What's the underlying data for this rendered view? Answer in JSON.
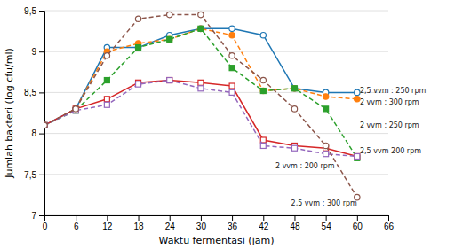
{
  "chart_data": {
    "type": "line",
    "xlabel": "Waktu fermentasi (jam)",
    "ylabel": "Jumlah bakteri (log cfu/ml)",
    "x": [
      0,
      6,
      12,
      18,
      24,
      30,
      36,
      42,
      48,
      54,
      60
    ],
    "xlim": [
      0,
      66
    ],
    "ylim": [
      7,
      9.5
    ],
    "xticks": [
      0,
      6,
      12,
      18,
      24,
      30,
      36,
      42,
      48,
      54,
      60,
      66
    ],
    "yticks": [
      7,
      {
        "value": 7.5,
        "label": "7,5"
      },
      8,
      {
        "value": 8.5,
        "label": "8,5"
      },
      9,
      {
        "value": 9.5,
        "label": "9,5"
      }
    ],
    "grid": "y",
    "series": [
      {
        "values": [
          8.1,
          8.3,
          9.05,
          9.05,
          9.2,
          9.28,
          9.28,
          9.2,
          8.55,
          8.5,
          8.5
        ],
        "marker": "open-circle",
        "line_style": "solid"
      },
      {
        "values": [
          8.1,
          8.3,
          9.0,
          9.1,
          9.15,
          9.28,
          9.2,
          8.52,
          8.55,
          8.45,
          8.42
        ],
        "marker": "circle",
        "line_style": "dashed"
      },
      {
        "values": [
          8.1,
          8.28,
          8.65,
          9.05,
          9.15,
          9.28,
          8.8,
          8.52,
          8.55,
          8.3,
          7.7
        ],
        "marker": "square",
        "line_style": "dashed"
      },
      {
        "values": [
          8.1,
          8.3,
          8.42,
          8.62,
          8.65,
          8.62,
          8.58,
          7.92,
          7.85,
          7.82,
          7.72
        ],
        "marker": "open-square",
        "line_style": "solid"
      },
      {
        "values": [
          8.1,
          8.28,
          8.35,
          8.6,
          8.65,
          8.55,
          8.5,
          7.85,
          7.82,
          7.75,
          7.72
        ],
        "marker": "open-square",
        "line_style": "dashed"
      },
      {
        "values": [
          8.1,
          8.3,
          8.95,
          9.4,
          9.45,
          9.45,
          8.95,
          8.65,
          8.3,
          7.85,
          7.22
        ],
        "marker": "open-circle",
        "line_style": "dashed"
      }
    ],
    "annotations": [
      {
        "x": 60.2,
        "y": 8.52,
        "text": "2,5 vvm : 250 rpm"
      },
      {
        "x": 60.2,
        "y": 8.38,
        "text": "2 vvm : 300 rpm"
      },
      {
        "x": 60.2,
        "y": 8.1,
        "text": "2 vvm : 250 rpm"
      },
      {
        "x": 60.2,
        "y": 7.78,
        "text": "2,5 vvm 200 rpm"
      },
      {
        "x": 44.0,
        "y": 7.6,
        "text": "2 vvm : 200 rpm"
      },
      {
        "x": 47.0,
        "y": 7.15,
        "text": "2,5 vvm : 300 rpm"
      }
    ]
  }
}
